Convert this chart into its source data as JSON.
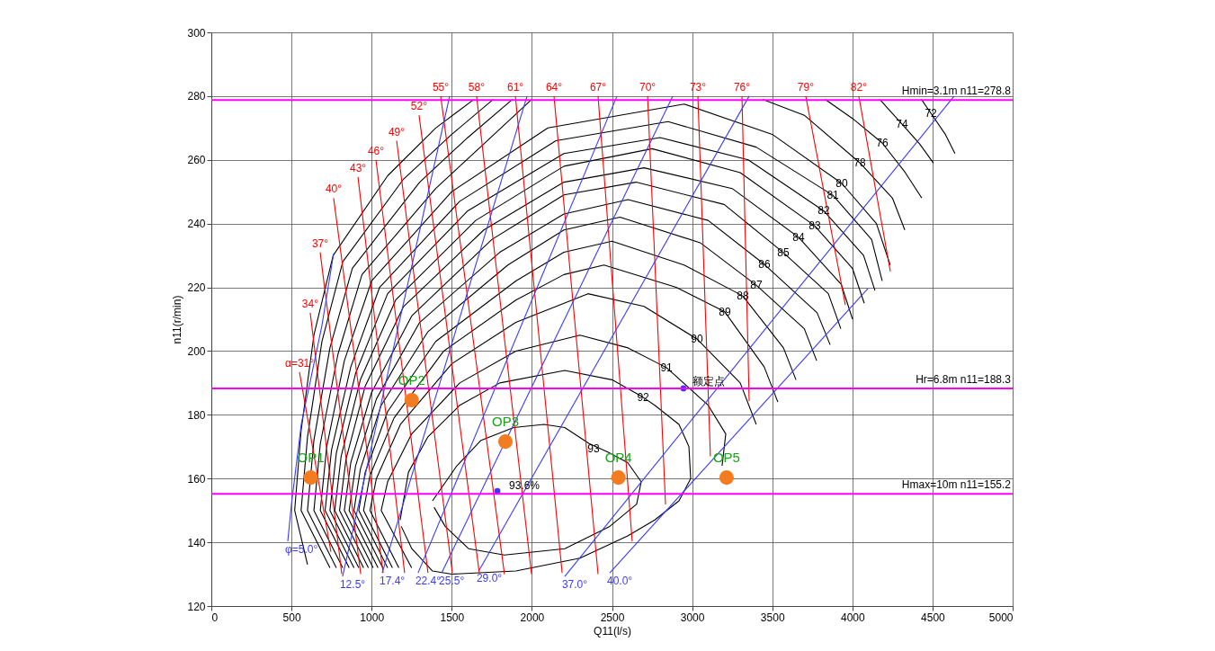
{
  "chart_data": {
    "type": "line",
    "xlabel": "Q11(l/s)",
    "ylabel": "n11(r/min)",
    "xlim": [
      0,
      5000
    ],
    "ylim": [
      120,
      300
    ],
    "xticks": [
      0,
      500,
      1000,
      1500,
      2000,
      2500,
      3000,
      3500,
      4000,
      4500,
      5000
    ],
    "yticks": [
      120,
      140,
      160,
      180,
      200,
      220,
      240,
      260,
      280,
      300
    ],
    "grid": true,
    "series": [
      {
        "color": "#000000",
        "x": [
          600,
          520,
          560,
          640,
          760,
          1100,
          1400,
          1640,
          null,
          4430,
          4490,
          4580,
          4640
        ],
        "values": [
          133,
          150,
          175,
          205,
          230,
          255,
          270,
          279,
          null,
          279,
          274.6,
          268,
          262
        ]
      },
      {
        "color": "#000000",
        "x": [
          740,
          560,
          600,
          690,
          820,
          1200,
          1500,
          1760,
          null,
          4170,
          4310,
          4420,
          4506
        ],
        "values": [
          132,
          150,
          173,
          203,
          228,
          254,
          268,
          279,
          null,
          279,
          271.2,
          265,
          259
        ]
      },
      {
        "color": "#000000",
        "x": [
          780,
          600,
          640,
          740,
          880,
          1300,
          1600,
          1880,
          null,
          3830,
          4000,
          4186,
          4330,
          4433
        ],
        "values": [
          132,
          150,
          172,
          201,
          226,
          253,
          267,
          279,
          null,
          279,
          273,
          265.3,
          256,
          248
        ]
      },
      {
        "color": "#000000",
        "x": [
          820,
          640,
          680,
          790,
          940,
          1400,
          1700,
          2000,
          null,
          3440,
          3700,
          4046,
          4250,
          4327
        ],
        "values": [
          132,
          150,
          171,
          199,
          224,
          251,
          265,
          279,
          null,
          279,
          274,
          259.1,
          248,
          238
        ]
      },
      {
        "color": "#000000",
        "x": [
          860,
          680,
          720,
          830,
          1000,
          1500,
          2100,
          2950,
          3500,
          3934,
          4150,
          4236
        ],
        "values": [
          132,
          150,
          170,
          197,
          222,
          250,
          270,
          277.5,
          268,
          252.6,
          240,
          227
        ]
      },
      {
        "color": "#000000",
        "x": [
          890,
          710,
          750,
          870,
          1050,
          1550,
          2150,
          2850,
          3400,
          3878,
          4120,
          4186
        ],
        "values": [
          132,
          150,
          169,
          195,
          220,
          247,
          266,
          272,
          264,
          248.9,
          235,
          222
        ]
      },
      {
        "color": "#000000",
        "x": [
          920,
          740,
          780,
          900,
          1100,
          1600,
          2200,
          2800,
          3350,
          3821,
          4070,
          4141
        ],
        "values": [
          132,
          150,
          168,
          193,
          218,
          244,
          262,
          267,
          260,
          244,
          230,
          219
        ]
      },
      {
        "color": "#000000",
        "x": [
          950,
          770,
          810,
          930,
          1150,
          1650,
          2200,
          2750,
          3300,
          3765,
          4000,
          4074
        ],
        "values": [
          132,
          150,
          167,
          191,
          216,
          241,
          258,
          263.5,
          256,
          239.3,
          226,
          215
        ]
      },
      {
        "color": "#000000",
        "x": [
          980,
          800,
          840,
          960,
          1200,
          1700,
          2200,
          2700,
          3250,
          3664,
          3930,
          4001
        ],
        "values": [
          132,
          150,
          166,
          189,
          214,
          238,
          253,
          257.5,
          251,
          235.7,
          221,
          210
        ]
      },
      {
        "color": "#000000",
        "x": [
          1010,
          830,
          870,
          1000,
          1250,
          1750,
          2200,
          2650,
          3200,
          3569,
          3850,
          3928
        ],
        "values": [
          132,
          150,
          165,
          187,
          211,
          235,
          249,
          253,
          246,
          230.9,
          218,
          207
        ]
      },
      {
        "color": "#000000",
        "x": [
          1040,
          860,
          900,
          1030,
          1300,
          1800,
          2200,
          2600,
          3100,
          3451,
          3780,
          3861
        ],
        "values": [
          132,
          150,
          164,
          185,
          209,
          231,
          243,
          247.5,
          241,
          227.2,
          212,
          202
        ]
      },
      {
        "color": "#000000",
        "x": [
          1070,
          890,
          930,
          1060,
          1350,
          1850,
          2200,
          2550,
          3050,
          3400,
          3700,
          3777
        ],
        "values": [
          132,
          150,
          163,
          183,
          206,
          227,
          238,
          242,
          234,
          220.7,
          207,
          197
        ]
      },
      {
        "color": "#000000",
        "x": [
          1100,
          920,
          960,
          1100,
          1400,
          1900,
          2200,
          2500,
          2950,
          3316,
          3570,
          3648
        ],
        "values": [
          132,
          150,
          162,
          181,
          203,
          222,
          231,
          234.5,
          227,
          217.3,
          201,
          191
        ]
      },
      {
        "color": "#000000",
        "x": [
          1130,
          950,
          990,
          1140,
          1450,
          1900,
          2200,
          2450,
          2900,
          3204,
          3450,
          3535
        ],
        "values": [
          132,
          150,
          161,
          179,
          200,
          216,
          224,
          227,
          220,
          212.3,
          195,
          184
        ]
      },
      {
        "color": "#000000",
        "x": [
          1170,
          990,
          1030,
          1180,
          1500,
          1900,
          2350,
          2700,
          3030,
          3300,
          3400
        ],
        "values": [
          132,
          150,
          160,
          177,
          196,
          209,
          218,
          214,
          203.8,
          190,
          177
        ]
      },
      {
        "color": "#000000",
        "x": [
          1250,
          1060,
          1100,
          1250,
          1550,
          1900,
          2300,
          2600,
          2840,
          3100,
          3210,
          3187
        ],
        "values": [
          132,
          150,
          159,
          174,
          190,
          200,
          205,
          201,
          194.8,
          183,
          174,
          164
        ]
      },
      {
        "color": "#000000",
        "x": [
          1178,
          1230,
          1350,
          1550,
          1800,
          2205,
          2500,
          2694,
          2767,
          2918,
          2980,
          2991,
          2918,
          2767,
          2598,
          2300,
          1900,
          1500,
          1380,
          1251,
          1185
        ],
        "values": [
          147,
          162,
          173,
          183,
          190,
          193.9,
          191,
          185.5,
          183,
          177,
          170,
          160,
          153,
          147,
          142,
          135,
          131,
          130,
          131,
          138,
          145
        ]
      },
      {
        "color": "#000000",
        "x": [
          1380,
          1532,
          1683,
          1886,
          2076,
          2205,
          2357,
          2486,
          2598,
          2682,
          2654,
          2486,
          2205,
          1829,
          1605,
          1459,
          1390
        ],
        "values": [
          153,
          164,
          172,
          176,
          177,
          176,
          171,
          168,
          165,
          159,
          152,
          145,
          138,
          136,
          138,
          145,
          151
        ]
      },
      {
        "name": "α=31°",
        "color": "#ff0000",
        "x": [
          550,
          746
        ],
        "values": [
          193.4,
          137
        ]
      },
      {
        "name": "34°",
        "color": "#ff0000",
        "x": [
          617,
          814
        ],
        "values": [
          212,
          130
        ]
      },
      {
        "name": "37°",
        "color": "#ff0000",
        "x": [
          679,
          932
        ],
        "values": [
          231,
          130
        ]
      },
      {
        "name": "40°",
        "color": "#ff0000",
        "x": [
          763,
          1072
        ],
        "values": [
          248,
          130.4
        ]
      },
      {
        "name": "43°",
        "color": "#ff0000",
        "x": [
          915,
          1206
        ],
        "values": [
          254.6,
          130.4
        ]
      },
      {
        "name": "46°",
        "color": "#ff0000",
        "x": [
          1027,
          1352
        ],
        "values": [
          260,
          130.4
        ]
      },
      {
        "name": "49°",
        "color": "#ff0000",
        "x": [
          1156,
          1504
        ],
        "values": [
          266,
          130.4
        ]
      },
      {
        "name": "52°",
        "color": "#ff0000",
        "x": [
          1296,
          1672
        ],
        "values": [
          274,
          130.4
        ]
      },
      {
        "name": "55°",
        "color": "#ff0000",
        "x": [
          1431,
          1829
        ],
        "values": [
          280,
          130
        ]
      },
      {
        "name": "58°",
        "color": "#ff0000",
        "x": [
          1655,
          1998
        ],
        "values": [
          280,
          130
        ]
      },
      {
        "name": "61°",
        "color": "#ff0000",
        "x": [
          1897,
          2189
        ],
        "values": [
          280,
          130.4
        ]
      },
      {
        "name": "64°",
        "color": "#ff0000",
        "x": [
          2138,
          2413
        ],
        "values": [
          280,
          130
        ]
      },
      {
        "name": "67°",
        "color": "#ff0000",
        "x": [
          2413,
          2626
        ],
        "values": [
          280,
          140.3
        ]
      },
      {
        "name": "70°",
        "color": "#ff0000",
        "x": [
          2722,
          2834
        ],
        "values": [
          280,
          151.9
        ]
      },
      {
        "name": "73°",
        "color": "#ff0000",
        "x": [
          3036,
          3114
        ],
        "values": [
          280,
          167
        ]
      },
      {
        "name": "76°",
        "color": "#ff0000",
        "x": [
          3311,
          3356
        ],
        "values": [
          280,
          184.3
        ]
      },
      {
        "name": "79°",
        "color": "#ff0000",
        "x": [
          3709,
          3956
        ],
        "values": [
          280,
          214.5
        ]
      },
      {
        "name": "82°",
        "color": "#ff0000",
        "x": [
          4040,
          4237
        ],
        "values": [
          280,
          225
        ]
      },
      {
        "name": "φ=5.0°",
        "color": "#3a3aff",
        "x": [
          477,
          500,
          561,
          690,
          763
        ],
        "values": [
          140.3,
          152,
          177,
          208,
          230.6
        ]
      },
      {
        "name": "12.5°",
        "color": "#3a3aff",
        "x": [
          819,
          1487
        ],
        "values": [
          129.3,
          280
        ]
      },
      {
        "name": "17.4°",
        "color": "#3a3aff",
        "x": [
          1066,
          1970
        ],
        "values": [
          130.4,
          280
        ]
      },
      {
        "name": "22.4°",
        "color": "#3a3aff",
        "x": [
          1290,
          2531
        ],
        "values": [
          130.4,
          280
        ]
      },
      {
        "name": "25.5°",
        "color": "#3a3aff",
        "x": [
          1437,
          2879
        ],
        "values": [
          130.4,
          280
        ]
      },
      {
        "name": "29.0°",
        "color": "#3a3aff",
        "x": [
          1672,
          3356
        ],
        "values": [
          131.3,
          280
        ]
      },
      {
        "name": "37.0°",
        "color": "#3a3aff",
        "x": [
          2205,
          4635
        ],
        "values": [
          129.3,
          280
        ]
      },
      {
        "name": "40.0°",
        "color": "#3a3aff",
        "x": [
          2486,
          4097
        ],
        "values": [
          130.4,
          219.6
        ]
      },
      {
        "type": "scatter",
        "marker": "circle",
        "color": "#3a3aff",
        "x": [
          1785,
          2946
        ],
        "values": [
          156.1,
          188.3
        ]
      },
      {
        "type": "scatter",
        "marker": "circle",
        "color": "#f47c20",
        "x": [
          620,
          1250,
          1835,
          2540,
          3215
        ],
        "values": [
          160.3,
          184.6,
          171.6,
          160.3,
          160.3
        ],
        "value_labels": [
          "OP1",
          "OP2",
          "OP3",
          "OP4",
          "OP5"
        ]
      }
    ],
    "ref_lines": [
      {
        "axis": "y",
        "value": 278.8,
        "label": "Hmin=3.1m n11=278.8",
        "color": "#ff00ff"
      },
      {
        "axis": "y",
        "value": 188.3,
        "label": "Hr=6.8m n11=188.3",
        "color": "#ff00ff"
      },
      {
        "axis": "y",
        "value": 155.2,
        "label": "Hmax=10m n11=155.2",
        "color": "#ff00ff"
      }
    ],
    "annotations": [
      {
        "text": "72",
        "x": 4490,
        "y": 274.6
      },
      {
        "text": "74",
        "x": 4310,
        "y": 271.2
      },
      {
        "text": "76",
        "x": 4186,
        "y": 265.3
      },
      {
        "text": "78",
        "x": 4046,
        "y": 259.1
      },
      {
        "text": "80",
        "x": 3934,
        "y": 252.6
      },
      {
        "text": "81",
        "x": 3878,
        "y": 248.9
      },
      {
        "text": "82",
        "x": 3821,
        "y": 244
      },
      {
        "text": "83",
        "x": 3765,
        "y": 239.3
      },
      {
        "text": "84",
        "x": 3664,
        "y": 235.7
      },
      {
        "text": "85",
        "x": 3569,
        "y": 230.9
      },
      {
        "text": "86",
        "x": 3451,
        "y": 227.2
      },
      {
        "text": "87",
        "x": 3400,
        "y": 220.7
      },
      {
        "text": "88",
        "x": 3316,
        "y": 217.3
      },
      {
        "text": "89",
        "x": 3204,
        "y": 212.3
      },
      {
        "text": "90",
        "x": 3030,
        "y": 203.8
      },
      {
        "text": "91",
        "x": 2840,
        "y": 194.8
      },
      {
        "text": "92",
        "x": 2694,
        "y": 185.5
      },
      {
        "text": "93",
        "x": 2385,
        "y": 169.4
      },
      {
        "text": "93.6%",
        "x": 1953,
        "y": 157.8
      },
      {
        "text": "额定点",
        "x": 3103,
        "y": 190.5
      }
    ]
  }
}
